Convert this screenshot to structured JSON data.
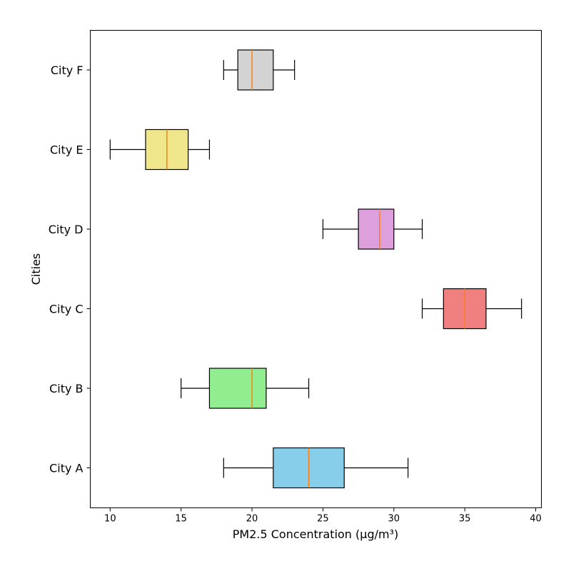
{
  "chart_data": {
    "type": "boxplot",
    "orientation": "horizontal",
    "title": "",
    "xlabel": "PM2.5 Concentration (µg/m³)",
    "ylabel": "Cities",
    "xlim": [
      8.6,
      40.4
    ],
    "xticks": [
      10,
      15,
      20,
      25,
      30,
      35,
      40
    ],
    "grid": false,
    "median_color": "#ff7f0e",
    "categories": [
      "City A",
      "City B",
      "City C",
      "City D",
      "City E",
      "City F"
    ],
    "boxes": [
      {
        "category": "City A",
        "whisker_low": 18,
        "q1": 21.5,
        "median": 24,
        "q3": 26.5,
        "whisker_high": 31,
        "color": "#87ceeb"
      },
      {
        "category": "City B",
        "whisker_low": 15,
        "q1": 17,
        "median": 20,
        "q3": 21,
        "whisker_high": 24,
        "color": "#90ee90"
      },
      {
        "category": "City C",
        "whisker_low": 32,
        "q1": 33.5,
        "median": 35,
        "q3": 36.5,
        "whisker_high": 39,
        "color": "#f08080"
      },
      {
        "category": "City D",
        "whisker_low": 25,
        "q1": 27.5,
        "median": 29,
        "q3": 30,
        "whisker_high": 32,
        "color": "#dda0dd"
      },
      {
        "category": "City E",
        "whisker_low": 10,
        "q1": 12.5,
        "median": 14,
        "q3": 15.5,
        "whisker_high": 17,
        "color": "#f0e68c"
      },
      {
        "category": "City F",
        "whisker_low": 18,
        "q1": 19,
        "median": 20,
        "q3": 21.5,
        "whisker_high": 23,
        "color": "#d3d3d3"
      }
    ]
  }
}
